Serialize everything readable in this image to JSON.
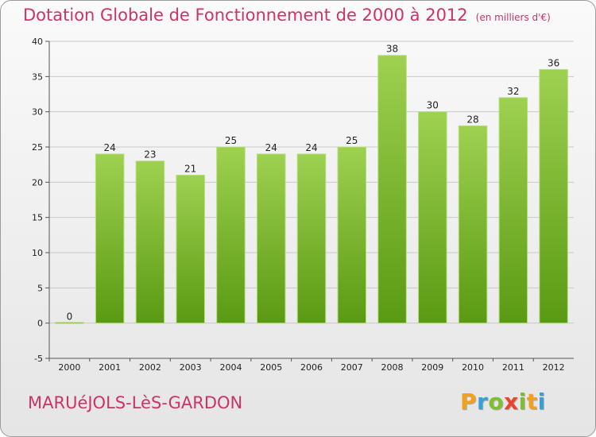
{
  "title": "Dotation Globale de Fonctionnement de 2000 à 2012",
  "unit": "(en milliers d'€)",
  "commune": "MARUéJOLS-LèS-GARDON",
  "logo": {
    "letters": [
      "P",
      "r",
      "o",
      "x",
      "i",
      "t",
      "i"
    ],
    "colors": [
      "#f2a11c",
      "#3a9fd6",
      "#7fbf2f",
      "#e8452c",
      "#7fbf2f",
      "#f2a11c",
      "#3a9fd6"
    ]
  },
  "colors": {
    "title": "#cc3366",
    "bar_top": "#9ed150",
    "bar_bottom": "#5a9a12",
    "grid": "#c8c8c8"
  },
  "chart_data": {
    "type": "bar",
    "categories": [
      "2000",
      "2001",
      "2002",
      "2003",
      "2004",
      "2005",
      "2006",
      "2007",
      "2008",
      "2009",
      "2010",
      "2011",
      "2012"
    ],
    "values": [
      0,
      24,
      23,
      21,
      25,
      24,
      24,
      25,
      38,
      30,
      28,
      32,
      36
    ],
    "value_labels": [
      "0",
      "24",
      "23",
      "21",
      "25",
      "24",
      "24",
      "25",
      "38",
      "30",
      "28",
      "32",
      "36"
    ],
    "title": "Dotation Globale de Fonctionnement de 2000 à 2012",
    "xlabel": "",
    "ylabel": "",
    "ylim": [
      -5,
      40
    ],
    "yticks": [
      -5,
      0,
      5,
      10,
      15,
      20,
      25,
      30,
      35,
      40
    ],
    "ytick_labels": [
      "-5",
      "0",
      "5",
      "10",
      "15",
      "20",
      "25",
      "30",
      "35",
      "40"
    ],
    "grid": "horizontal",
    "legend": "none"
  }
}
